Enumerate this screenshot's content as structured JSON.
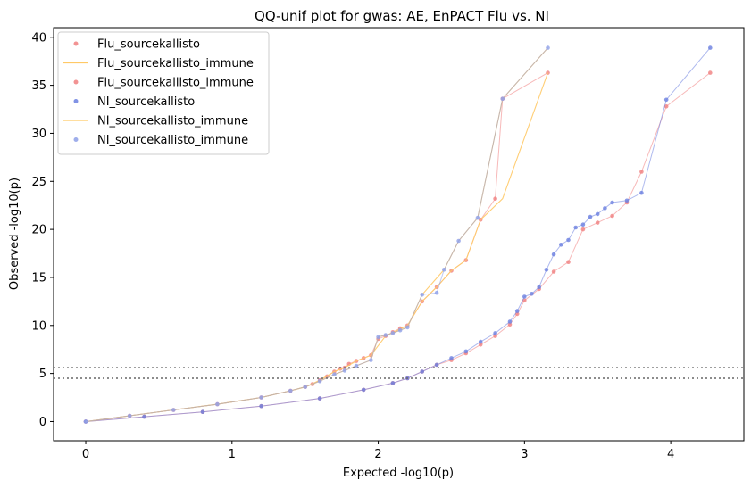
{
  "chart_data": {
    "type": "scatter",
    "title": "QQ-unif plot for gwas: AE, EnPACT Flu vs. NI",
    "xlabel": "Expected -log10(p)",
    "ylabel": "Observed -log10(p)",
    "xlim": [
      -0.22,
      4.5
    ],
    "ylim": [
      -2.0,
      41.0
    ],
    "xticks": [
      0,
      1,
      2,
      3,
      4
    ],
    "yticks": [
      0,
      5,
      10,
      15,
      20,
      25,
      30,
      35,
      40
    ],
    "legend_position": "top-left",
    "hlines": [
      5.6,
      4.5
    ],
    "series": [
      {
        "name": "Flu_sourcekallisto",
        "kind": "scatter",
        "color": "#f08080",
        "x": [
          0,
          0.3,
          0.6,
          0.9,
          1.2,
          1.4,
          1.5,
          1.55,
          1.6,
          1.65,
          1.7,
          1.74,
          1.77,
          1.8,
          1.85,
          1.9,
          1.95,
          2.0,
          2.05,
          2.1,
          2.15,
          2.2,
          2.3,
          2.4,
          2.5,
          2.6,
          2.7,
          2.8,
          2.85,
          3.16
        ],
        "y": [
          0,
          0.6,
          1.2,
          1.8,
          2.5,
          3.2,
          3.6,
          3.9,
          4.3,
          4.7,
          5.2,
          5.5,
          5.6,
          6.0,
          6.3,
          6.6,
          6.9,
          8.6,
          8.9,
          9.3,
          9.7,
          10.0,
          12.5,
          14.0,
          15.7,
          16.8,
          21.0,
          23.2,
          33.6,
          36.3
        ]
      },
      {
        "name": "Flu_sourcekallisto_immune",
        "kind": "line",
        "color": "#ffc966",
        "x": [
          0,
          0.3,
          0.6,
          0.9,
          1.2,
          1.4,
          1.5,
          1.6,
          1.7,
          1.77,
          1.85,
          1.95,
          2.05,
          2.2,
          2.3,
          2.4,
          2.5,
          2.6,
          2.7,
          2.85,
          3.16
        ],
        "y": [
          0,
          0.6,
          1.2,
          1.8,
          2.5,
          3.2,
          3.6,
          4.3,
          5.2,
          5.6,
          6.3,
          6.9,
          8.9,
          10.0,
          12.5,
          14.0,
          15.7,
          16.8,
          21.0,
          23.2,
          36.3
        ]
      },
      {
        "name": "Flu_sourcekallisto_immune",
        "kind": "scatter",
        "color": "#f08080",
        "x": [
          0,
          0.4,
          0.8,
          1.2,
          1.6,
          1.9,
          2.1,
          2.2,
          2.3,
          2.4,
          2.5,
          2.6,
          2.7,
          2.8,
          2.9,
          2.95,
          3.0,
          3.1,
          3.2,
          3.3,
          3.4,
          3.5,
          3.6,
          3.7,
          3.8,
          3.97,
          4.27
        ],
        "y": [
          0,
          0.5,
          1.0,
          1.6,
          2.4,
          3.3,
          4.0,
          4.5,
          5.2,
          5.9,
          6.4,
          7.1,
          8.0,
          8.9,
          10.1,
          11.2,
          12.6,
          13.8,
          15.6,
          16.6,
          20.0,
          20.7,
          21.4,
          22.8,
          26.0,
          32.8,
          36.3
        ]
      },
      {
        "name": "NI_sourcekallisto",
        "kind": "scatter",
        "color": "#6b80e0",
        "x": [
          0,
          0.4,
          0.8,
          1.2,
          1.6,
          1.9,
          2.1,
          2.2,
          2.3,
          2.4,
          2.5,
          2.6,
          2.7,
          2.8,
          2.9,
          2.95,
          3.0,
          3.05,
          3.1,
          3.15,
          3.2,
          3.25,
          3.3,
          3.35,
          3.4,
          3.45,
          3.5,
          3.55,
          3.6,
          3.7,
          3.8,
          3.97,
          4.27
        ],
        "y": [
          0,
          0.5,
          1.0,
          1.6,
          2.4,
          3.3,
          4.0,
          4.5,
          5.2,
          5.9,
          6.6,
          7.3,
          8.3,
          9.2,
          10.4,
          11.5,
          13.0,
          13.3,
          14.0,
          15.8,
          17.4,
          18.4,
          18.9,
          20.2,
          20.5,
          21.3,
          21.6,
          22.2,
          22.8,
          23.0,
          23.8,
          33.5,
          38.9
        ]
      },
      {
        "name": "NI_sourcekallisto_immune",
        "kind": "line",
        "color": "#ffc966",
        "x": [
          0,
          0.3,
          0.6,
          0.9,
          1.2,
          1.4,
          1.5,
          1.6,
          1.7,
          1.77,
          1.85,
          1.95,
          2.0,
          2.1,
          2.2,
          2.3,
          2.45,
          2.55,
          2.68,
          2.85,
          3.16
        ],
        "y": [
          0,
          0.6,
          1.2,
          1.8,
          2.5,
          3.2,
          3.6,
          4.2,
          4.9,
          5.3,
          5.8,
          6.4,
          8.8,
          9.2,
          9.8,
          13.2,
          15.8,
          18.8,
          21.2,
          33.6,
          38.9
        ]
      },
      {
        "name": "NI_sourcekallisto_immune",
        "kind": "scatter",
        "color": "#8ea0e8",
        "x": [
          0,
          0.3,
          0.6,
          0.9,
          1.2,
          1.4,
          1.5,
          1.6,
          1.7,
          1.77,
          1.85,
          1.95,
          2.0,
          2.05,
          2.1,
          2.15,
          2.2,
          2.3,
          2.4,
          2.45,
          2.55,
          2.68,
          2.85,
          3.16
        ],
        "y": [
          0,
          0.6,
          1.2,
          1.8,
          2.5,
          3.2,
          3.6,
          4.2,
          4.9,
          5.3,
          5.8,
          6.4,
          8.8,
          9.0,
          9.2,
          9.5,
          9.8,
          13.2,
          13.4,
          15.8,
          18.8,
          21.2,
          33.6,
          38.9
        ]
      }
    ]
  }
}
